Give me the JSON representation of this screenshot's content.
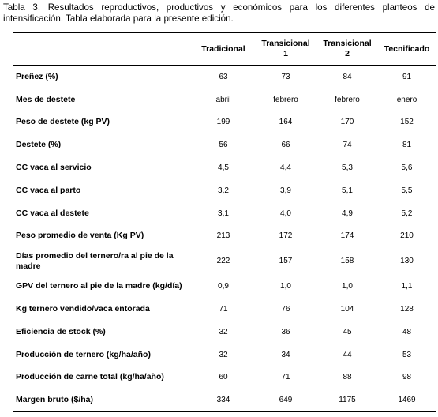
{
  "caption": "Tabla 3. Resultados reproductivos, productivos y económicos para los diferentes planteos de intensificación. Tabla elaborada para la presente edición.",
  "columns": [
    {
      "line1": "Tradicional",
      "line2": ""
    },
    {
      "line1": "Transicional",
      "line2": "1"
    },
    {
      "line1": "Transicional",
      "line2": "2"
    },
    {
      "line1": "Tecnificado",
      "line2": ""
    }
  ],
  "rows": [
    {
      "label": "Preñez (%)",
      "values": [
        "63",
        "73",
        "84",
        "91"
      ]
    },
    {
      "label": "Mes de destete",
      "values": [
        "abril",
        "febrero",
        "febrero",
        "enero"
      ]
    },
    {
      "label": "Peso de destete (kg PV)",
      "values": [
        "199",
        "164",
        "170",
        "152"
      ]
    },
    {
      "label": "Destete (%)",
      "values": [
        "56",
        "66",
        "74",
        "81"
      ]
    },
    {
      "label": "CC vaca al servicio",
      "values": [
        "4,5",
        "4,4",
        "5,3",
        "5,6"
      ]
    },
    {
      "label": "CC vaca al parto",
      "values": [
        "3,2",
        "3,9",
        "5,1",
        "5,5"
      ]
    },
    {
      "label": "CC vaca al destete",
      "values": [
        "3,1",
        "4,0",
        "4,9",
        "5,2"
      ]
    },
    {
      "label": "Peso promedio de venta (Kg PV)",
      "values": [
        "213",
        "172",
        "174",
        "210"
      ]
    },
    {
      "label": "Días promedio del ternero/ra al pie de la madre",
      "values": [
        "222",
        "157",
        "158",
        "130"
      ]
    },
    {
      "label": "GPV del ternero al pie de la madre (kg/día)",
      "values": [
        "0,9",
        "1,0",
        "1,0",
        "1,1"
      ]
    },
    {
      "label": "Kg ternero vendido/vaca entorada",
      "values": [
        "71",
        "76",
        "104",
        "128"
      ]
    },
    {
      "label": "Eficiencia de stock (%)",
      "values": [
        "32",
        "36",
        "45",
        "48"
      ]
    },
    {
      "label": "Producción de ternero (kg/ha/año)",
      "values": [
        "32",
        "34",
        "44",
        "53"
      ]
    },
    {
      "label": "Producción de carne total (kg/ha/año)",
      "values": [
        "60",
        "71",
        "88",
        "98"
      ]
    },
    {
      "label": "Margen bruto ($/ha)",
      "values": [
        "334",
        "649",
        "1175",
        "1469"
      ]
    }
  ]
}
